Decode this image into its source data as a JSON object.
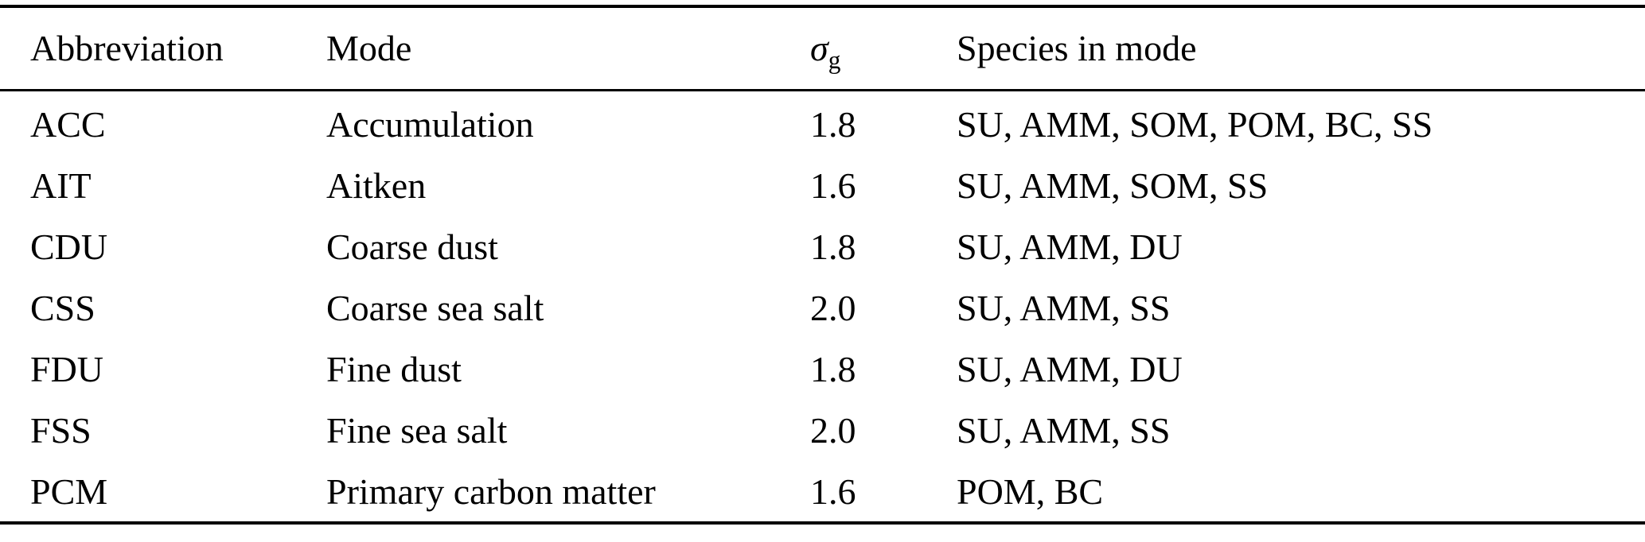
{
  "table": {
    "headers": {
      "abbreviation": "Abbreviation",
      "mode": "Mode",
      "sigma_symbol": "σ",
      "sigma_sub": "g",
      "species": "Species in mode"
    },
    "rows": [
      {
        "abbr": "ACC",
        "mode": "Accumulation",
        "sigma": "1.8",
        "species": "SU, AMM, SOM, POM, BC, SS"
      },
      {
        "abbr": "AIT",
        "mode": "Aitken",
        "sigma": "1.6",
        "species": "SU, AMM, SOM, SS"
      },
      {
        "abbr": "CDU",
        "mode": "Coarse dust",
        "sigma": "1.8",
        "species": "SU, AMM, DU"
      },
      {
        "abbr": "CSS",
        "mode": "Coarse sea salt",
        "sigma": "2.0",
        "species": "SU, AMM, SS"
      },
      {
        "abbr": "FDU",
        "mode": "Fine dust",
        "sigma": "1.8",
        "species": "SU, AMM, DU"
      },
      {
        "abbr": "FSS",
        "mode": "Fine sea salt",
        "sigma": "2.0",
        "species": "SU, AMM, SS"
      },
      {
        "abbr": "PCM",
        "mode": "Primary carbon matter",
        "sigma": "1.6",
        "species": "POM, BC"
      }
    ],
    "colors": {
      "text": "#000000",
      "background": "#ffffff",
      "rule": "#000000"
    }
  }
}
